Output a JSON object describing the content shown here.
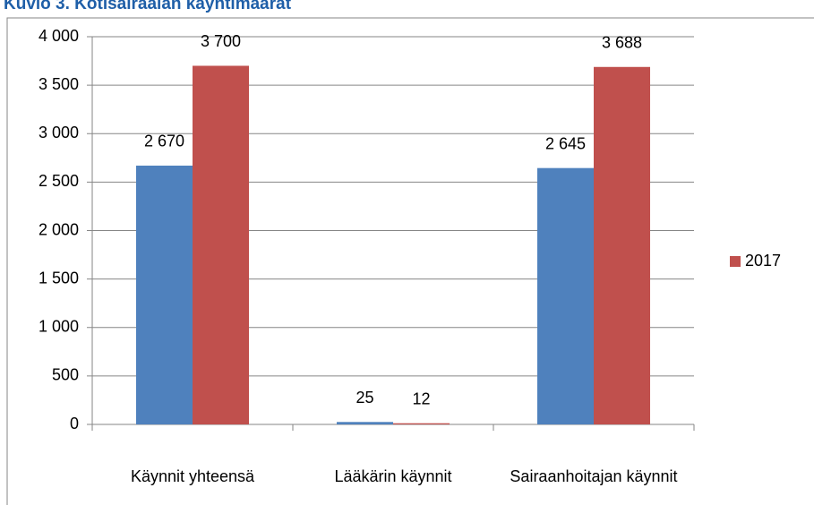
{
  "chart_data": {
    "type": "bar",
    "title": "Kuvio 3. Kotisairaalan käyntimäärät",
    "categories": [
      "Käynnit yhteensä",
      "Lääkärin käynnit",
      "Sairaanhoitajan käynnit"
    ],
    "series": [
      {
        "color": "#4f81bd",
        "values": [
          2670,
          25,
          2645
        ],
        "value_labels": [
          "2 670",
          "25",
          "2 645"
        ]
      },
      {
        "name": "2017",
        "color": "#c0504d",
        "values": [
          3700,
          12,
          3688
        ],
        "value_labels": [
          "3 700",
          "12",
          "3 688"
        ]
      }
    ],
    "ylim": [
      0,
      4000
    ],
    "yticks": [
      {
        "value": 0,
        "label": "0"
      },
      {
        "value": 500,
        "label": "500"
      },
      {
        "value": 1000,
        "label": "1 000"
      },
      {
        "value": 1500,
        "label": "1 500"
      },
      {
        "value": 2000,
        "label": "2 000"
      },
      {
        "value": 2500,
        "label": "2 500"
      },
      {
        "value": 3000,
        "label": "3 000"
      },
      {
        "value": 3500,
        "label": "3 500"
      },
      {
        "value": 4000,
        "label": "4 000"
      }
    ],
    "grid": true,
    "legend": "right"
  }
}
